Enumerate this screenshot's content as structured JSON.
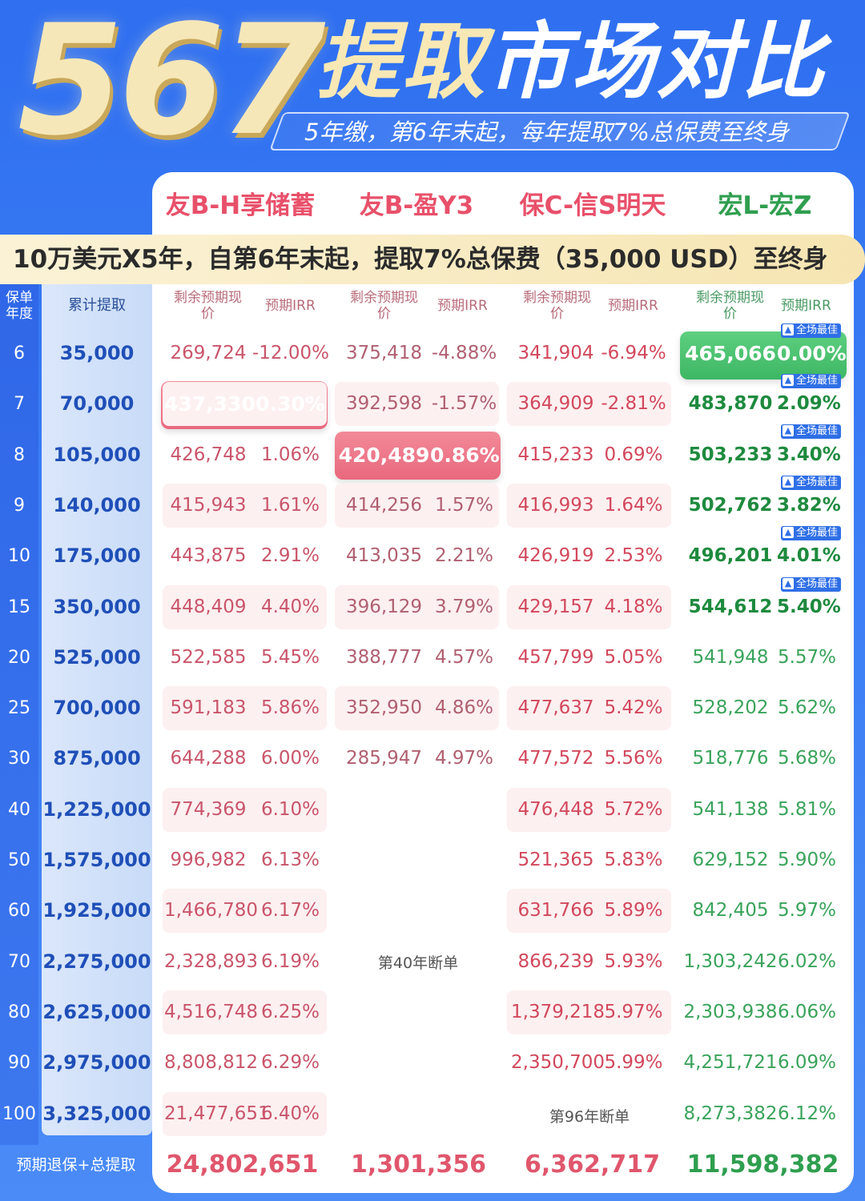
{
  "header": {
    "number": "567",
    "title_part1": "提取",
    "title_part2": "市场对比",
    "subtitle": "5年缴，第6年末起，每年提取7%总保费至终身"
  },
  "plans": [
    {
      "name": "友B-H享储蓄",
      "color": "#e8506a"
    },
    {
      "name": "友B-盈Y3",
      "color": "#e8506a"
    },
    {
      "name": "保C-信S明天",
      "color": "#e8506a"
    },
    {
      "name": "宏L-宏Z",
      "color": "#2f9e4f"
    }
  ],
  "notice": "10万美元X5年，自第6年末起，提取7%总保费（35,000 USD）至终身",
  "columns": {
    "year": "保单年度",
    "cumulative": "累计提取",
    "pv": "剩余预期现价",
    "irr": "预期IRR"
  },
  "best_badge": "全场最佳",
  "rows": [
    {
      "year": "6",
      "cum": "35,000",
      "p1": [
        "269,724",
        "-12.00%"
      ],
      "p2": [
        "375,418",
        "-4.88%"
      ],
      "p3": [
        "341,904",
        "-6.94%"
      ],
      "p4": [
        "465,066",
        "0.00%"
      ]
    },
    {
      "year": "7",
      "cum": "70,000",
      "p1": [
        "437,330",
        "0.30%"
      ],
      "p2": [
        "392,598",
        "-1.57%"
      ],
      "p3": [
        "364,909",
        "-2.81%"
      ],
      "p4": [
        "483,870",
        "2.09%"
      ]
    },
    {
      "year": "8",
      "cum": "105,000",
      "p1": [
        "426,748",
        "1.06%"
      ],
      "p2": [
        "420,489",
        "0.86%"
      ],
      "p3": [
        "415,233",
        "0.69%"
      ],
      "p4": [
        "503,233",
        "3.40%"
      ]
    },
    {
      "year": "9",
      "cum": "140,000",
      "p1": [
        "415,943",
        "1.61%"
      ],
      "p2": [
        "414,256",
        "1.57%"
      ],
      "p3": [
        "416,993",
        "1.64%"
      ],
      "p4": [
        "502,762",
        "3.82%"
      ]
    },
    {
      "year": "10",
      "cum": "175,000",
      "p1": [
        "443,875",
        "2.91%"
      ],
      "p2": [
        "413,035",
        "2.21%"
      ],
      "p3": [
        "426,919",
        "2.53%"
      ],
      "p4": [
        "496,201",
        "4.01%"
      ]
    },
    {
      "year": "15",
      "cum": "350,000",
      "p1": [
        "448,409",
        "4.40%"
      ],
      "p2": [
        "396,129",
        "3.79%"
      ],
      "p3": [
        "429,157",
        "4.18%"
      ],
      "p4": [
        "544,612",
        "5.40%"
      ]
    },
    {
      "year": "20",
      "cum": "525,000",
      "p1": [
        "522,585",
        "5.45%"
      ],
      "p2": [
        "388,777",
        "4.57%"
      ],
      "p3": [
        "457,799",
        "5.05%"
      ],
      "p4": [
        "541,948",
        "5.57%"
      ]
    },
    {
      "year": "25",
      "cum": "700,000",
      "p1": [
        "591,183",
        "5.86%"
      ],
      "p2": [
        "352,950",
        "4.86%"
      ],
      "p3": [
        "477,637",
        "5.42%"
      ],
      "p4": [
        "528,202",
        "5.62%"
      ]
    },
    {
      "year": "30",
      "cum": "875,000",
      "p1": [
        "644,288",
        "6.00%"
      ],
      "p2": [
        "285,947",
        "4.97%"
      ],
      "p3": [
        "477,572",
        "5.56%"
      ],
      "p4": [
        "518,776",
        "5.68%"
      ]
    },
    {
      "year": "40",
      "cum": "1,225,000",
      "p1": [
        "774,369",
        "6.10%"
      ],
      "p2": [
        "",
        ""
      ],
      "p3": [
        "476,448",
        "5.72%"
      ],
      "p4": [
        "541,138",
        "5.81%"
      ]
    },
    {
      "year": "50",
      "cum": "1,575,000",
      "p1": [
        "996,982",
        "6.13%"
      ],
      "p2": [
        "",
        ""
      ],
      "p3": [
        "521,365",
        "5.83%"
      ],
      "p4": [
        "629,152",
        "5.90%"
      ]
    },
    {
      "year": "60",
      "cum": "1,925,000",
      "p1": [
        "1,466,780",
        "6.17%"
      ],
      "p2": [
        "",
        ""
      ],
      "p3": [
        "631,766",
        "5.89%"
      ],
      "p4": [
        "842,405",
        "5.97%"
      ]
    },
    {
      "year": "70",
      "cum": "2,275,000",
      "p1": [
        "2,328,893",
        "6.19%"
      ],
      "p2": [
        "",
        ""
      ],
      "p3": [
        "866,239",
        "5.93%"
      ],
      "p4": [
        "1,303,242",
        "6.02%"
      ]
    },
    {
      "year": "80",
      "cum": "2,625,000",
      "p1": [
        "4,516,748",
        "6.25%"
      ],
      "p2": [
        "",
        ""
      ],
      "p3": [
        "1,379,218",
        "5.97%"
      ],
      "p4": [
        "2,303,938",
        "6.06%"
      ]
    },
    {
      "year": "90",
      "cum": "2,975,000",
      "p1": [
        "8,808,812",
        "6.29%"
      ],
      "p2": [
        "",
        ""
      ],
      "p3": [
        "2,350,700",
        "5.99%"
      ],
      "p4": [
        "4,251,721",
        "6.09%"
      ]
    },
    {
      "year": "100",
      "cum": "3,325,000",
      "p1": [
        "21,477,651",
        "6.40%"
      ],
      "p2": [
        "",
        ""
      ],
      "p3": [
        "",
        ""
      ],
      "p4": [
        "8,273,382",
        "6.12%"
      ]
    }
  ],
  "lapse_notes": {
    "plan2": "第40年断单",
    "plan3": "第96年断单"
  },
  "totals": {
    "label": "预期退保+总提取",
    "values": [
      "24,802,651",
      "1,301,356",
      "6,362,717",
      "11,598,382"
    ]
  }
}
